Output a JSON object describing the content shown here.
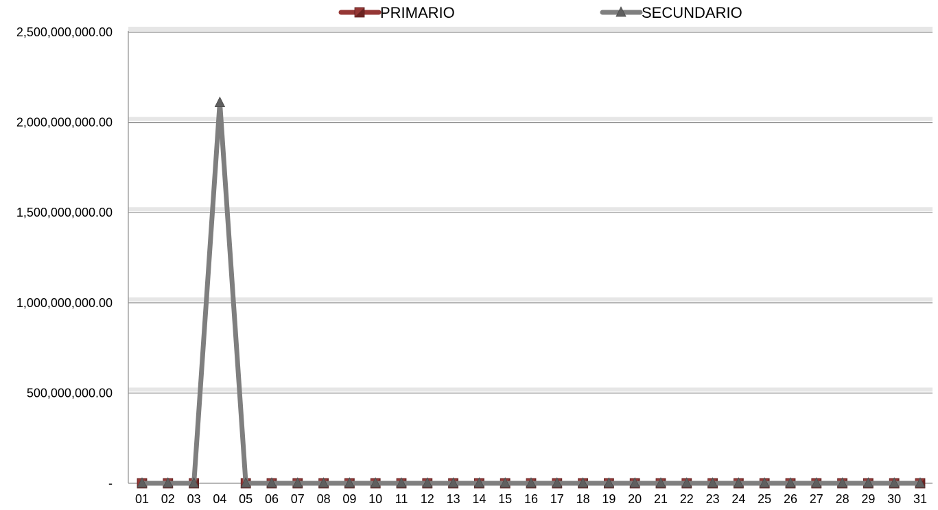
{
  "chart_data": {
    "type": "line",
    "title": "",
    "xlabel": "",
    "ylabel": "",
    "categories": [
      "01",
      "02",
      "03",
      "04",
      "05",
      "06",
      "07",
      "08",
      "09",
      "10",
      "11",
      "12",
      "13",
      "14",
      "15",
      "16",
      "17",
      "18",
      "19",
      "20",
      "21",
      "22",
      "23",
      "24",
      "25",
      "26",
      "27",
      "28",
      "29",
      "30",
      "31"
    ],
    "y_ticks": [
      {
        "value": 0,
        "label": "-"
      },
      {
        "value": 500000000,
        "label": "500,000,000.00"
      },
      {
        "value": 1000000000,
        "label": "1,000,000,000.00"
      },
      {
        "value": 1500000000,
        "label": "1,500,000,000.00"
      },
      {
        "value": 2000000000,
        "label": "2,000,000,000.00"
      },
      {
        "value": 2500000000,
        "label": "2,500,000,000.00"
      }
    ],
    "ylim": [
      0,
      2500000000
    ],
    "grid": true,
    "legend_position": "top",
    "series": [
      {
        "name": "PRIMARIO",
        "color": "#953735",
        "marker": "square",
        "values": [
          0,
          0,
          0,
          null,
          0,
          0,
          0,
          0,
          0,
          0,
          0,
          0,
          0,
          0,
          0,
          0,
          0,
          0,
          0,
          0,
          0,
          0,
          0,
          0,
          0,
          0,
          0,
          0,
          0,
          0,
          0
        ]
      },
      {
        "name": "SECUNDARIO",
        "color": "#7f7f7f",
        "marker": "triangle",
        "values": [
          0,
          0,
          0,
          2110000000,
          0,
          0,
          0,
          0,
          0,
          0,
          0,
          0,
          0,
          0,
          0,
          0,
          0,
          0,
          0,
          0,
          0,
          0,
          0,
          0,
          0,
          0,
          0,
          0,
          0,
          0,
          0
        ]
      }
    ]
  }
}
